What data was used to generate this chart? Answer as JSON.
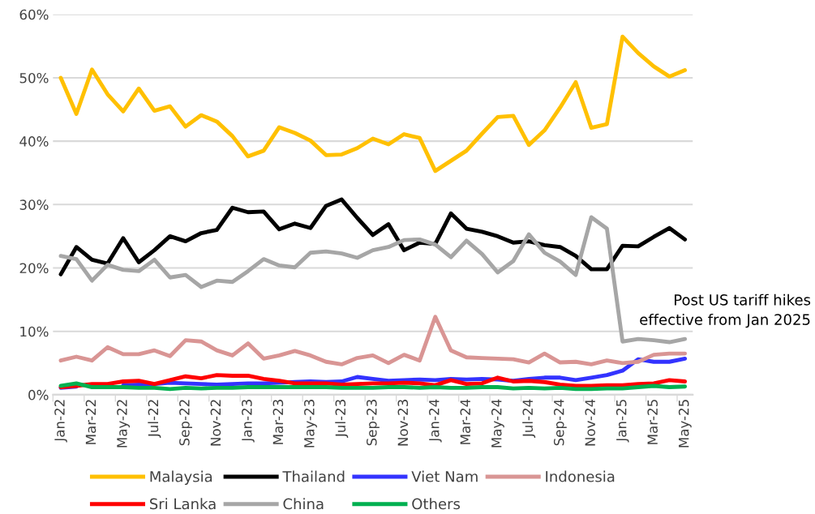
{
  "chart_data": {
    "type": "line",
    "categories": [
      "Jan-22",
      null,
      "Mar-22",
      null,
      "May-22",
      null,
      "Jul-22",
      null,
      "Sep-22",
      null,
      "Nov-22",
      null,
      "Jan-23",
      null,
      "Mar-23",
      null,
      "May-23",
      null,
      "Jul-23",
      null,
      "Sep-23",
      null,
      "Nov-23",
      null,
      "Jan-24",
      null,
      "Mar-24",
      null,
      "May-24",
      null,
      "Jul-24",
      null,
      "Sep-24",
      null,
      "Nov-24",
      null,
      "Jan-25",
      null,
      "Mar-25",
      null,
      "May-25"
    ],
    "series": [
      {
        "name": "Malaysia",
        "color": "#ffc000",
        "values": [
          50,
          44.3,
          51.3,
          47.4,
          44.7,
          48.3,
          44.8,
          45.5,
          42.3,
          44.1,
          43.1,
          40.8,
          37.6,
          38.5,
          42.2,
          41.3,
          40.1,
          37.8,
          37.9,
          38.9,
          40.4,
          39.5,
          41.1,
          40.5,
          35.3,
          36.9,
          38.5,
          41.2,
          43.8,
          44,
          39.4,
          41.7,
          45.3,
          49.3,
          42.1,
          42.7,
          56.5,
          53.9,
          51.8,
          50.2,
          51.2
        ]
      },
      {
        "name": "Thailand",
        "color": "#000000",
        "values": [
          19,
          23.3,
          21.3,
          20.7,
          24.7,
          20.9,
          22.8,
          25,
          24.2,
          25.5,
          26,
          29.5,
          28.8,
          28.9,
          26.1,
          27,
          26.3,
          29.8,
          30.8,
          27.9,
          25.2,
          26.9,
          22.8,
          24,
          23.8,
          28.6,
          26.2,
          25.7,
          25,
          24,
          24.2,
          23.6,
          23.3,
          21.9,
          19.8,
          19.8,
          23.5,
          23.4,
          24.9,
          26.3,
          24.5
        ]
      },
      {
        "name": "Viet Nam",
        "color": "#3333ff",
        "values": [
          1.1,
          1.3,
          null,
          null,
          1.5,
          1.6,
          1.7,
          1.9,
          1.8,
          1.7,
          1.6,
          1.7,
          1.8,
          1.8,
          1.9,
          2,
          2.1,
          2,
          2.1,
          2.8,
          2.5,
          2.2,
          2.3,
          2.4,
          2.3,
          2.5,
          2.4,
          2.5,
          2.4,
          2.2,
          2.5,
          2.7,
          2.7,
          2.3,
          2.7,
          3.1,
          3.8,
          5.6,
          5.2,
          5.2,
          5.7
        ]
      },
      {
        "name": "Indonesia",
        "color": "#d99594",
        "values": [
          5.4,
          6,
          5.4,
          7.5,
          6.4,
          6.4,
          7,
          6.1,
          8.6,
          8.4,
          7,
          6.2,
          8.1,
          5.7,
          6.2,
          6.9,
          6.2,
          5.2,
          4.8,
          5.8,
          6.2,
          5,
          6.3,
          5.4,
          12.3,
          7,
          5.9,
          5.8,
          5.7,
          5.6,
          5.1,
          6.5,
          5.1,
          5.2,
          4.8,
          5.4,
          5,
          5.2,
          6.3,
          6.5,
          6.5
        ]
      },
      {
        "name": "Sri Lanka",
        "color": "#ff0000",
        "values": [
          1.2,
          1.4,
          1.7,
          1.7,
          2.1,
          2.2,
          1.7,
          2.3,
          2.9,
          2.6,
          3.1,
          3,
          3,
          2.5,
          2.2,
          1.8,
          1.8,
          1.8,
          1.6,
          1.7,
          1.8,
          1.8,
          1.9,
          1.8,
          1.5,
          2.3,
          1.7,
          1.8,
          2.7,
          2.1,
          2.2,
          2,
          1.6,
          1.4,
          1.4,
          1.5,
          1.5,
          1.7,
          1.8,
          2.3,
          2.1
        ]
      },
      {
        "name": "China",
        "color": "#a6a6a6",
        "values": [
          21.9,
          21.4,
          18,
          20.5,
          19.7,
          19.5,
          21.3,
          18.5,
          18.9,
          17,
          18,
          17.8,
          19.5,
          21.4,
          20.4,
          20.1,
          22.4,
          22.6,
          22.3,
          21.6,
          22.8,
          23.3,
          24.4,
          24.5,
          23.7,
          21.7,
          24.3,
          22.2,
          19.3,
          21.1,
          25.3,
          22.4,
          21,
          18.9,
          28,
          26.2,
          8.4,
          8.8,
          8.6,
          8.3,
          8.8
        ]
      },
      {
        "name": "Others",
        "color": "#00b050",
        "values": [
          1.4,
          1.8,
          1.2,
          1.2,
          1.2,
          1.1,
          1.1,
          0.9,
          1.1,
          1,
          1.1,
          1.1,
          1.2,
          1.2,
          1.2,
          1.2,
          1.2,
          1.2,
          1.1,
          1.1,
          1.1,
          1.2,
          1.2,
          1.1,
          1.2,
          1.1,
          1.1,
          1.2,
          1.2,
          1,
          1.1,
          1,
          1.1,
          0.9,
          0.9,
          1,
          1,
          1.2,
          1.4,
          1.2,
          1.3
        ]
      }
    ],
    "ylim": [
      0,
      60
    ],
    "yticks": [
      {
        "value": 0,
        "label": "0%"
      },
      {
        "value": 10,
        "label": "10%"
      },
      {
        "value": 20,
        "label": "20%"
      },
      {
        "value": 30,
        "label": "30%"
      },
      {
        "value": 40,
        "label": "40%"
      },
      {
        "value": 50,
        "label": "50%"
      },
      {
        "value": 60,
        "label": "60%"
      }
    ],
    "grid": "y",
    "legend": "bottom",
    "marker": "none",
    "line_style": "solid",
    "annotations": [
      "Post US tariff hikes\neffective from Jan 2025"
    ]
  }
}
